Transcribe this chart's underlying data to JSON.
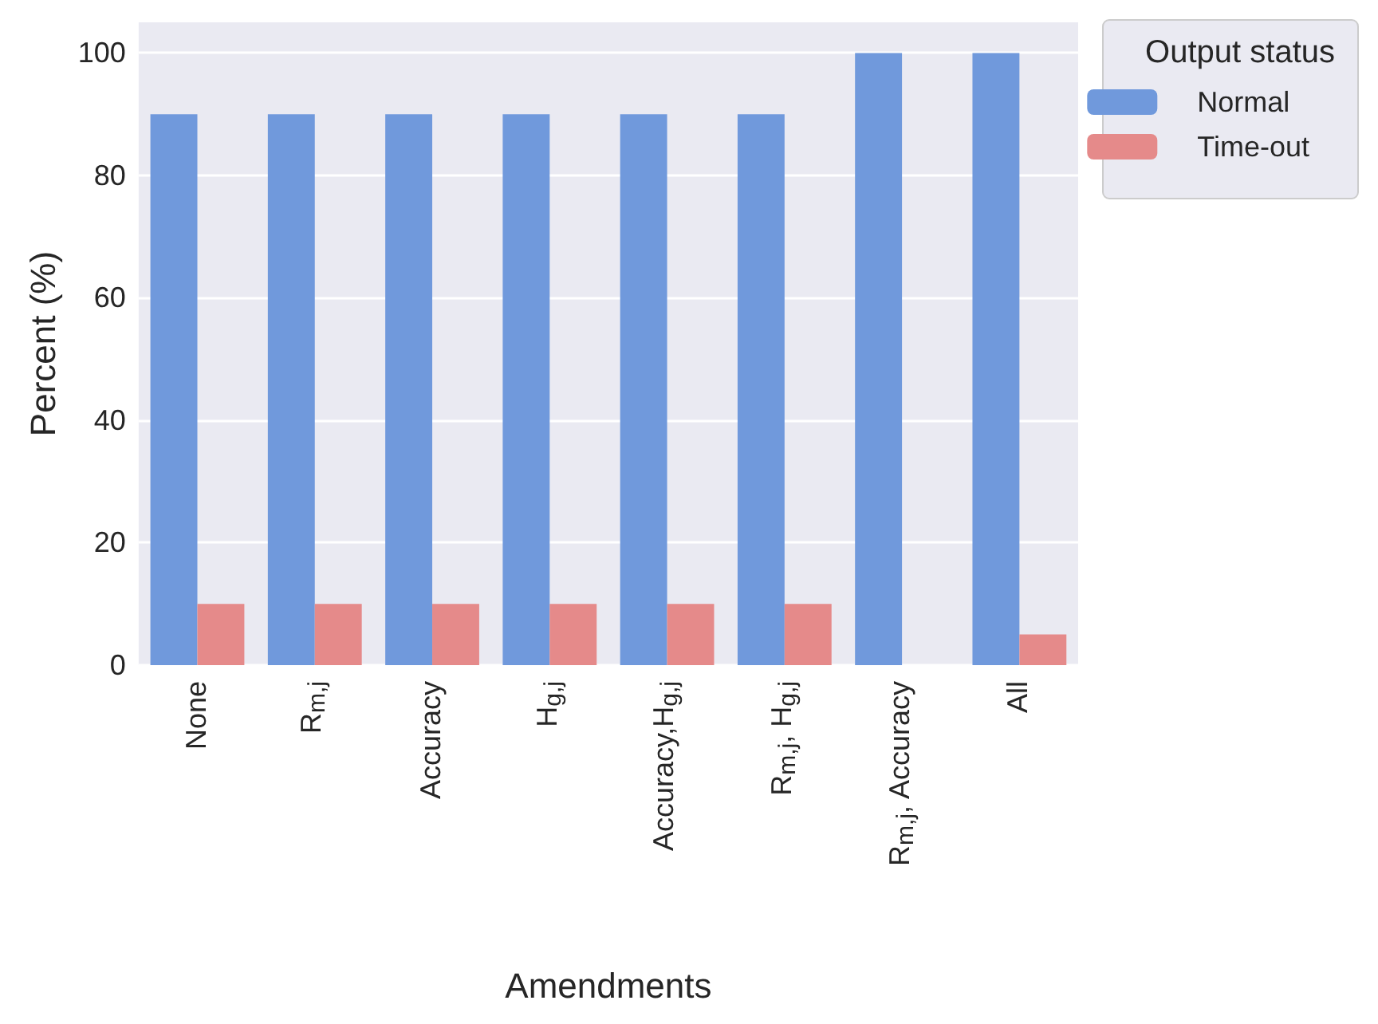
{
  "chart_data": {
    "type": "bar",
    "xlabel": "Amendments",
    "ylabel": "Percent (%)",
    "legend_title": "Output status",
    "categories": [
      "None",
      "R$_{m,j}$",
      "Accuracy",
      "H$_{g,j}$",
      "Accuracy,H$_{g,j}$",
      "R$_{m,j}$, H$_{g,j}$",
      "R$_{m,j}$, Accuracy",
      "All"
    ],
    "series": [
      {
        "name": "Normal",
        "color": "#7099dc",
        "values": [
          90,
          90,
          90,
          90,
          90,
          90,
          100,
          100
        ]
      },
      {
        "name": "Time-out",
        "color": "#e58a8a",
        "values": [
          10,
          10,
          10,
          10,
          10,
          10,
          0,
          5
        ]
      }
    ],
    "ylim": [
      0,
      105
    ],
    "yticks": [
      0,
      20,
      40,
      60,
      80,
      100
    ],
    "grid": "y",
    "legend": "top right"
  }
}
